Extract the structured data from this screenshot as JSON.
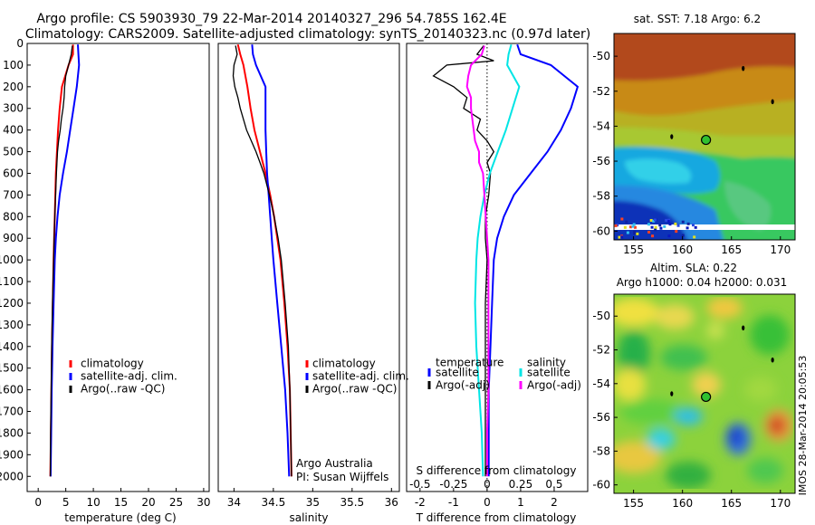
{
  "header": {
    "title_line1": "Argo profile: CS 5903930_79 22-Mar-2014 20140327_296 54.785S 162.4E",
    "title_line2": "Climatology: CARS2009. Satellite-adjusted climatology: synTS_20140323.nc (0.97d later)"
  },
  "colors": {
    "clim": "#ff0000",
    "sat": "#0000ff",
    "argo": "#000000",
    "sal_sat": "#00e5e5",
    "sal_argo": "#ff00ff",
    "ref_line": "#000000"
  },
  "chart_data": [
    {
      "id": "temperature",
      "type": "line",
      "xlabel": "temperature (deg C)",
      "ylabel": "",
      "xlim": [
        -2,
        31
      ],
      "ylim": [
        2070,
        0
      ],
      "xticks": [
        0,
        5,
        10,
        15,
        20,
        25,
        30
      ],
      "yticks": [
        0,
        100,
        200,
        300,
        400,
        500,
        600,
        700,
        800,
        900,
        1000,
        1100,
        1200,
        1300,
        1400,
        1500,
        1600,
        1700,
        1800,
        1900,
        2000
      ],
      "legend": {
        "entries": [
          "climatology",
          "satellite-adj. clim.",
          "Argo(..raw -QC)"
        ]
      },
      "series": [
        {
          "name": "climatology",
          "color": "red",
          "depth": [
            5,
            50,
            100,
            200,
            300,
            400,
            500,
            600,
            700,
            800,
            900,
            1000,
            1200,
            1400,
            1600,
            1800,
            2000
          ],
          "values": [
            6.3,
            6.3,
            5.5,
            4.3,
            3.9,
            3.6,
            3.4,
            3.2,
            3.1,
            3.0,
            2.9,
            2.8,
            2.65,
            2.5,
            2.4,
            2.3,
            2.2
          ]
        },
        {
          "name": "satellite-adj. clim.",
          "color": "blue",
          "depth": [
            5,
            50,
            100,
            200,
            300,
            400,
            500,
            600,
            700,
            800,
            900,
            1000,
            1200,
            1400,
            1600,
            1800,
            2000
          ],
          "values": [
            7.2,
            7.3,
            7.4,
            7.0,
            6.4,
            5.8,
            5.2,
            4.5,
            3.9,
            3.5,
            3.2,
            3.0,
            2.8,
            2.6,
            2.45,
            2.35,
            2.25
          ]
        },
        {
          "name": "Argo(..raw -QC)",
          "color": "black",
          "depth": [
            10,
            50,
            100,
            150,
            200,
            250,
            300,
            350,
            400,
            450,
            500,
            550,
            600,
            700,
            800,
            900,
            1000,
            1200,
            1400,
            1600,
            1800,
            2000
          ],
          "values": [
            6.2,
            6.0,
            5.5,
            5.0,
            4.8,
            4.7,
            4.5,
            4.2,
            4.0,
            3.7,
            3.5,
            3.4,
            3.3,
            3.15,
            3.0,
            2.9,
            2.8,
            2.6,
            2.45,
            2.35,
            2.25,
            2.2
          ]
        }
      ]
    },
    {
      "id": "salinity",
      "type": "line",
      "xlabel": "salinity",
      "ylabel": "",
      "xlim": [
        33.8,
        36.1
      ],
      "ylim": [
        2070,
        0
      ],
      "xticks": [
        34,
        34.5,
        35,
        35.5,
        36
      ],
      "legend": {
        "entries": [
          "climatology",
          "satellite-adj. clim.",
          "Argo(..raw -QC)"
        ]
      },
      "annotations": [
        "Argo Australia",
        "PI: Susan Wijffels"
      ],
      "series": [
        {
          "name": "climatology",
          "color": "red",
          "depth": [
            5,
            50,
            100,
            200,
            300,
            400,
            500,
            600,
            700,
            800,
            900,
            1000,
            1200,
            1400,
            1600,
            1800,
            2000
          ],
          "values": [
            34.05,
            34.08,
            34.12,
            34.17,
            34.21,
            34.26,
            34.33,
            34.4,
            34.46,
            34.51,
            34.55,
            34.59,
            34.64,
            34.68,
            34.71,
            34.72,
            34.73
          ]
        },
        {
          "name": "satellite-adj. clim.",
          "color": "blue",
          "depth": [
            5,
            50,
            100,
            200,
            300,
            400,
            500,
            600,
            700,
            800,
            900,
            1000,
            1200,
            1400,
            1600,
            1800,
            2000
          ],
          "values": [
            34.23,
            34.24,
            34.28,
            34.4,
            34.4,
            34.4,
            34.41,
            34.42,
            34.44,
            34.46,
            34.48,
            34.5,
            34.55,
            34.6,
            34.65,
            34.68,
            34.7
          ]
        },
        {
          "name": "Argo(..raw -QC)",
          "color": "black",
          "depth": [
            10,
            50,
            100,
            150,
            200,
            250,
            300,
            350,
            400,
            450,
            500,
            550,
            600,
            700,
            800,
            900,
            1000,
            1200,
            1400,
            1600,
            1800,
            2000
          ],
          "values": [
            34.02,
            34.04,
            34.0,
            33.99,
            34.01,
            34.05,
            34.08,
            34.12,
            34.16,
            34.22,
            34.28,
            34.33,
            34.38,
            34.45,
            34.51,
            34.56,
            34.6,
            34.65,
            34.69,
            34.71,
            34.72,
            34.73
          ]
        }
      ]
    },
    {
      "id": "difference",
      "type": "line",
      "xlabel": "T difference from climatology",
      "top_axis_label": "S difference from climatology",
      "xlim": [
        -2.4,
        3.0
      ],
      "ylim": [
        2070,
        0
      ],
      "xticks": [
        -2,
        -1,
        0,
        1,
        2
      ],
      "top_ticks": [
        "-0.5",
        "-0.25",
        "0",
        "0.25",
        "0.5"
      ],
      "legend_temperature": {
        "title": "temperature",
        "entries": [
          "satellite",
          "Argo(-adj)"
        ]
      },
      "legend_salinity": {
        "title": "salinity",
        "entries": [
          "satellite",
          "Argo(-adj)"
        ]
      },
      "series": [
        {
          "name": "T satellite",
          "color": "blue",
          "depth": [
            5,
            50,
            100,
            200,
            300,
            400,
            500,
            600,
            700,
            800,
            900,
            1000,
            1200,
            1400,
            1600,
            1800,
            2000
          ],
          "values": [
            0.9,
            1.0,
            1.9,
            2.7,
            2.5,
            2.2,
            1.8,
            1.3,
            0.8,
            0.5,
            0.3,
            0.2,
            0.15,
            0.1,
            0.05,
            0.05,
            0.05
          ]
        },
        {
          "name": "T Argo(-adj)",
          "color": "black",
          "depth": [
            10,
            50,
            80,
            100,
            150,
            200,
            250,
            300,
            350,
            400,
            450,
            500,
            550,
            600,
            700,
            800,
            900,
            1000,
            1200,
            1400,
            1600,
            1800,
            2000
          ],
          "values": [
            -0.1,
            -0.3,
            0.2,
            -1.2,
            -1.6,
            -1.0,
            -0.6,
            -0.7,
            -0.2,
            -0.3,
            0.0,
            0.2,
            0.0,
            0.1,
            0.05,
            -0.05,
            -0.05,
            0.0,
            -0.05,
            -0.05,
            -0.05,
            -0.05,
            -0.05
          ]
        },
        {
          "name": "S satellite",
          "color": "cyan",
          "depth": [
            5,
            50,
            100,
            200,
            300,
            400,
            500,
            600,
            700,
            800,
            900,
            1000,
            1200,
            1400,
            1600,
            1800,
            2000
          ],
          "values": [
            0.18,
            0.16,
            0.15,
            0.24,
            0.19,
            0.14,
            0.08,
            0.02,
            -0.02,
            -0.05,
            -0.07,
            -0.08,
            -0.09,
            -0.08,
            -0.06,
            -0.04,
            -0.03
          ]
        },
        {
          "name": "S Argo(-adj)",
          "color": "magenta",
          "depth": [
            10,
            50,
            100,
            150,
            200,
            250,
            300,
            350,
            400,
            450,
            500,
            550,
            600,
            700,
            800,
            900,
            1000,
            1200,
            1400,
            1600,
            1800,
            2000
          ],
          "values": [
            -0.02,
            -0.04,
            -0.12,
            -0.14,
            -0.15,
            -0.12,
            -0.12,
            -0.11,
            -0.1,
            -0.09,
            -0.06,
            -0.06,
            -0.03,
            -0.02,
            -0.01,
            0.0,
            0.01,
            0.01,
            0.01,
            0.01,
            0.0,
            0.0
          ]
        }
      ]
    },
    {
      "id": "sst_map",
      "type": "heatmap",
      "title": "sat. SST: 7.18 Argo: 6.2",
      "xlim": [
        153,
        171.5
      ],
      "ylim": [
        -60.5,
        -48.7
      ],
      "xticks": [
        155,
        160,
        165,
        170
      ],
      "yticks": [
        -50,
        -52,
        -54,
        -56,
        -58,
        -60
      ],
      "marker": {
        "lon": 162.4,
        "lat": -54.785
      }
    },
    {
      "id": "sla_map",
      "type": "heatmap",
      "title_line1": "Altim. SLA: 0.22",
      "title_line2": "Argo h1000: 0.04 h2000: 0.031",
      "xlim": [
        153,
        171.5
      ],
      "ylim": [
        -60.5,
        -48.7
      ],
      "xticks": [
        155,
        160,
        165,
        170
      ],
      "yticks": [
        -50,
        -52,
        -54,
        -56,
        -58,
        -60
      ],
      "marker": {
        "lon": 162.4,
        "lat": -54.785
      }
    }
  ],
  "footer": {
    "stamp": "IMOS 28-Mar-2014 20:05:53"
  }
}
